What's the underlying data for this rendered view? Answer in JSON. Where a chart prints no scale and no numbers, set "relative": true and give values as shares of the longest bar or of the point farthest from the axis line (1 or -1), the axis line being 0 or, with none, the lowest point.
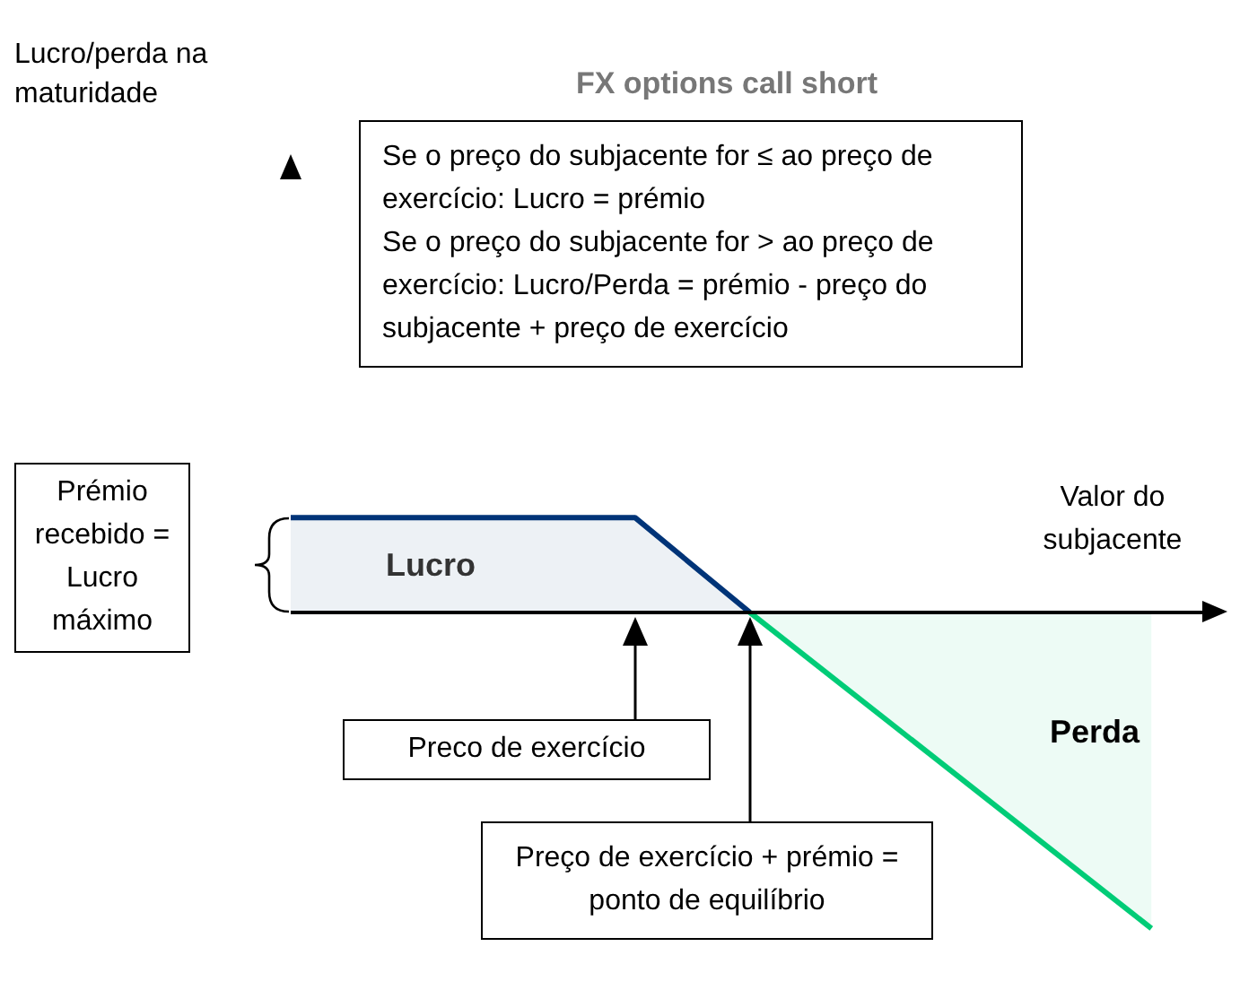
{
  "chart_data": {
    "type": "area",
    "relative": true,
    "title": "FX options call short",
    "xlabel": "Valor do subjacente",
    "categories": [
      null,
      null,
      null,
      null,
      null,
      null,
      null,
      null,
      null,
      null,
      null,
      null,
      null,
      null,
      null,
      null
    ],
    "series": [
      {
        "name": "Lucro",
        "color": "#003478",
        "values": [
          0.3,
          0.3,
          0.3,
          0.3,
          0.3,
          0.3,
          0.3,
          null,
          0,
          null,
          null,
          null,
          null,
          null,
          null,
          null
        ]
      },
      {
        "name": "Perda",
        "color": "#00cc77",
        "values": [
          null,
          null,
          null,
          null,
          null,
          null,
          null,
          null,
          0,
          null,
          null,
          null,
          null,
          null,
          null,
          -1
        ]
      }
    ],
    "annotations": [
      "Lucro/perda na maturidade",
      "Se o preço do subjacente for ≤ ao preço de exercício: Lucro = prémio\nSe o preço do subjacente for > ao preço de exercício: Lucro/Perda = prémio - preço do subjacente + preço de exercício",
      "Prémio recebido = Lucro máximo",
      "Preco de exercício",
      "Preço de exercício + prémio = ponto de equilíbrio"
    ]
  }
}
